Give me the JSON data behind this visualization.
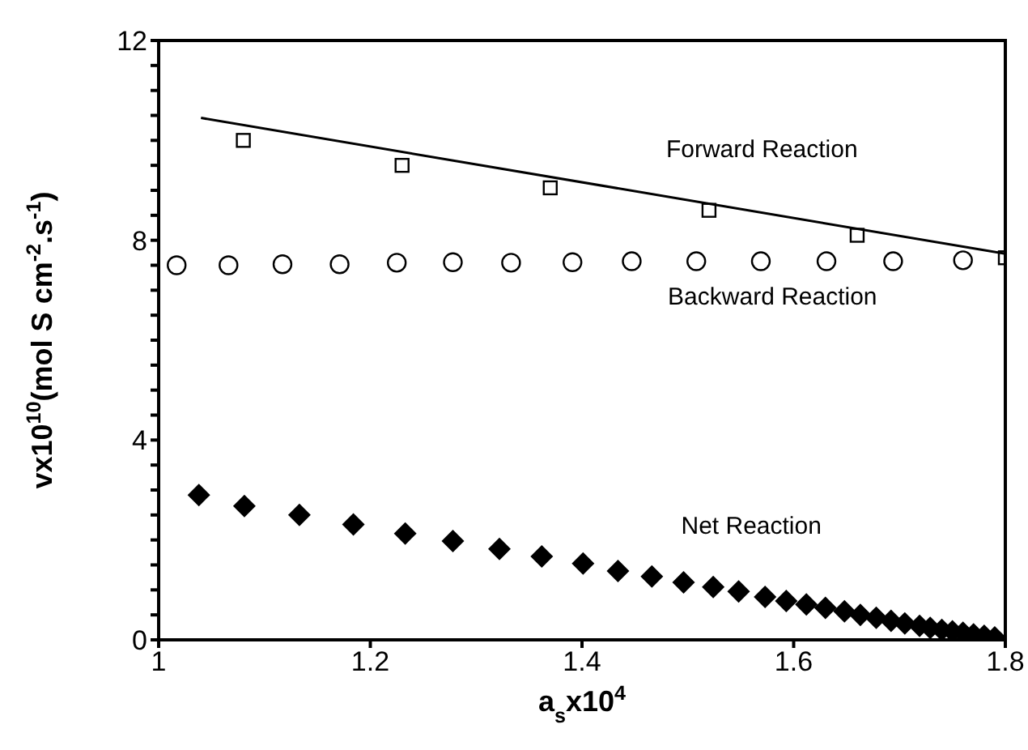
{
  "chart_data": {
    "type": "scatter",
    "xlabel": "a$_{s}$x10$^{4}$",
    "ylabel": "vx10$^{10}$(mol S cm$^{-2}$.s$^{-1}$)",
    "xlim": [
      1,
      1.8
    ],
    "xticks": [
      1,
      1.2,
      1.4,
      1.6,
      1.8
    ],
    "ylim": [
      0,
      12
    ],
    "yticks": [
      0,
      {
        "value": 0.5,
        "label": null
      },
      {
        "value": 1,
        "label": null
      },
      {
        "value": 1.5,
        "label": null
      },
      {
        "value": 2,
        "label": null
      },
      {
        "value": 2.5,
        "label": null
      },
      {
        "value": 3,
        "label": null
      },
      {
        "value": 3.5,
        "label": null
      },
      4,
      {
        "value": 4.5,
        "label": null
      },
      {
        "value": 5,
        "label": null
      },
      {
        "value": 5.5,
        "label": null
      },
      {
        "value": 6,
        "label": null
      },
      {
        "value": 6.5,
        "label": null
      },
      {
        "value": 7,
        "label": null
      },
      {
        "value": 7.5,
        "label": null
      },
      8,
      {
        "value": 8.5,
        "label": null
      },
      {
        "value": 9,
        "label": null
      },
      {
        "value": 9.5,
        "label": null
      },
      {
        "value": 10,
        "label": null
      },
      {
        "value": 10.5,
        "label": null
      },
      {
        "value": 11,
        "label": null
      },
      {
        "value": 11.5,
        "label": null
      },
      12
    ],
    "grid": false,
    "annotations": [
      "Forward Reaction",
      "Backward Reaction",
      "Net Reaction"
    ],
    "series": [
      {
        "type": "scatter",
        "marker": "square",
        "color": "#000000",
        "x": [
          1.08,
          1.23,
          1.37,
          1.52,
          1.66,
          1.8
        ],
        "values": [
          10.0,
          9.5,
          9.05,
          8.6,
          8.1,
          7.65
        ]
      },
      {
        "type": "line",
        "marker": "none",
        "color": "#000000",
        "x": [
          1.04,
          1.8
        ],
        "values": [
          10.45,
          7.73
        ]
      },
      {
        "type": "scatter",
        "marker": "circle",
        "color": "#000000",
        "x": [
          1.017,
          1.066,
          1.117,
          1.171,
          1.225,
          1.278,
          1.333,
          1.391,
          1.447,
          1.508,
          1.569,
          1.631,
          1.694,
          1.76
        ],
        "values": [
          7.5,
          7.5,
          7.52,
          7.52,
          7.55,
          7.56,
          7.55,
          7.56,
          7.58,
          7.58,
          7.58,
          7.58,
          7.58,
          7.6
        ]
      },
      {
        "type": "scatter",
        "marker": "diamond",
        "color": "#000000",
        "x": [
          1.038,
          1.081,
          1.133,
          1.184,
          1.233,
          1.278,
          1.322,
          1.362,
          1.401,
          1.434,
          1.466,
          1.496,
          1.524,
          1.548,
          1.573,
          1.593,
          1.612,
          1.63,
          1.648,
          1.663,
          1.678,
          1.692,
          1.705,
          1.719,
          1.729,
          1.74,
          1.75,
          1.76,
          1.77,
          1.78,
          1.79
        ],
        "values": [
          2.9,
          2.68,
          2.5,
          2.31,
          2.13,
          1.98,
          1.82,
          1.67,
          1.53,
          1.38,
          1.27,
          1.15,
          1.06,
          0.97,
          0.86,
          0.78,
          0.71,
          0.64,
          0.57,
          0.5,
          0.44,
          0.38,
          0.33,
          0.28,
          0.24,
          0.2,
          0.17,
          0.14,
          0.11,
          0.08,
          0.05
        ]
      }
    ]
  }
}
